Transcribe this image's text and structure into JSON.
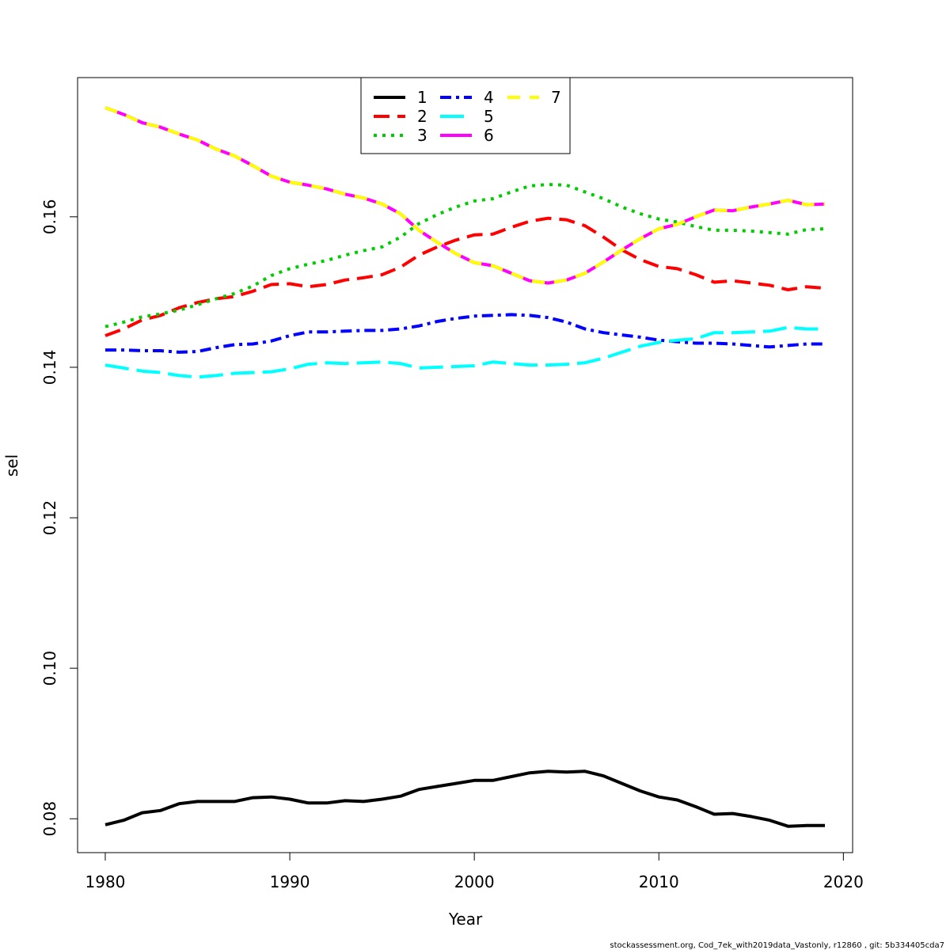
{
  "chart_data": {
    "type": "line",
    "title": "",
    "xlabel": "Year",
    "ylabel": "sel",
    "xlim": [
      1978.5,
      2020.5
    ],
    "ylim": [
      0.0755,
      0.1785
    ],
    "x_ticks": [
      1980,
      1990,
      2000,
      2010,
      2020
    ],
    "y_ticks": [
      0.08,
      0.1,
      0.12,
      0.14,
      0.16
    ],
    "x_tick_labels": [
      "1980",
      "1990",
      "2000",
      "2010",
      "2020"
    ],
    "y_tick_labels": [
      "0.08",
      "0.10",
      "0.12",
      "0.14",
      "0.16"
    ],
    "grid": false,
    "legend_position": "top-center",
    "footer": "stockassessment.org, Cod_7ek_with2019data_Vastonly, r12860 , git: 5b334405cda7",
    "x": [
      1980,
      1981,
      1982,
      1983,
      1984,
      1985,
      1986,
      1987,
      1988,
      1989,
      1990,
      1991,
      1992,
      1993,
      1994,
      1995,
      1996,
      1997,
      1998,
      1999,
      2000,
      2001,
      2002,
      2003,
      2004,
      2005,
      2006,
      2007,
      2008,
      2009,
      2010,
      2011,
      2012,
      2013,
      2014,
      2015,
      2016,
      2017,
      2018,
      2019
    ],
    "series": [
      {
        "name": "1",
        "color": "#000000",
        "dash": "",
        "values": [
          0.0792,
          0.0798,
          0.0808,
          0.0811,
          0.082,
          0.0823,
          0.0823,
          0.0823,
          0.0828,
          0.0829,
          0.0826,
          0.0821,
          0.0821,
          0.0824,
          0.0823,
          0.0826,
          0.083,
          0.0839,
          0.0843,
          0.0847,
          0.0851,
          0.0851,
          0.0856,
          0.0861,
          0.0863,
          0.0862,
          0.0863,
          0.0857,
          0.0847,
          0.0837,
          0.0829,
          0.0825,
          0.0816,
          0.0806,
          0.0807,
          0.0803,
          0.0798,
          0.079,
          0.0791,
          0.0791
        ]
      },
      {
        "name": "2",
        "color": "#ff0000",
        "dash": "20,10",
        "values": [
          0.1442,
          0.1451,
          0.1463,
          0.1469,
          0.1479,
          0.1486,
          0.1491,
          0.1494,
          0.1501,
          0.151,
          0.1511,
          0.1507,
          0.151,
          0.1516,
          0.1519,
          0.1523,
          0.1533,
          0.1549,
          0.156,
          0.1569,
          0.1576,
          0.1577,
          0.1586,
          0.1594,
          0.1598,
          0.1596,
          0.1588,
          0.1573,
          0.1556,
          0.1543,
          0.1534,
          0.1531,
          0.1523,
          0.1513,
          0.1515,
          0.1512,
          0.1509,
          0.1503,
          0.1507,
          0.1505
        ]
      },
      {
        "name": "3",
        "color": "#00cd00",
        "dash": "4,7",
        "values": [
          0.1454,
          0.146,
          0.1467,
          0.1471,
          0.1476,
          0.1483,
          0.1491,
          0.1498,
          0.1508,
          0.1522,
          0.1531,
          0.1537,
          0.1542,
          0.1549,
          0.1555,
          0.156,
          0.1573,
          0.1591,
          0.1603,
          0.1613,
          0.1621,
          0.1624,
          0.1633,
          0.1641,
          0.1643,
          0.1642,
          0.1633,
          0.1624,
          0.1613,
          0.1604,
          0.1597,
          0.1593,
          0.1587,
          0.1582,
          0.1582,
          0.1581,
          0.1579,
          0.1577,
          0.1583,
          0.1584
        ]
      },
      {
        "name": "4",
        "color": "#0000ff",
        "dash": "14,6,4,6",
        "values": [
          0.1423,
          0.1423,
          0.1422,
          0.1422,
          0.142,
          0.1421,
          0.1426,
          0.143,
          0.1431,
          0.1435,
          0.1442,
          0.1447,
          0.1447,
          0.1448,
          0.1449,
          0.1449,
          0.1451,
          0.1455,
          0.1461,
          0.1465,
          0.1468,
          0.1469,
          0.147,
          0.1469,
          0.1466,
          0.146,
          0.1451,
          0.1446,
          0.1443,
          0.144,
          0.1436,
          0.1434,
          0.1432,
          0.1432,
          0.1431,
          0.1429,
          0.1427,
          0.1429,
          0.1431,
          0.1431
        ]
      },
      {
        "name": "5",
        "color": "#00ffff",
        "dash": "30,10",
        "values": [
          0.1403,
          0.1399,
          0.1395,
          0.1393,
          0.1389,
          0.1387,
          0.1389,
          0.1392,
          0.1393,
          0.1394,
          0.1398,
          0.1404,
          0.1406,
          0.1405,
          0.1406,
          0.1407,
          0.1405,
          0.1399,
          0.14,
          0.1401,
          0.1402,
          0.1407,
          0.1405,
          0.1403,
          0.1403,
          0.1404,
          0.1406,
          0.1412,
          0.142,
          0.1428,
          0.1433,
          0.1436,
          0.1438,
          0.1446,
          0.1446,
          0.1447,
          0.1448,
          0.1453,
          0.1451,
          0.1451
        ]
      },
      {
        "name": "6",
        "color": "#ff00ff",
        "dash": "",
        "values": [
          0.1745,
          0.1736,
          0.1725,
          0.1719,
          0.171,
          0.1702,
          0.169,
          0.1681,
          0.1668,
          0.1654,
          0.1646,
          0.1642,
          0.1637,
          0.163,
          0.1625,
          0.1617,
          0.1604,
          0.1582,
          0.1566,
          0.1551,
          0.1539,
          0.1535,
          0.1525,
          0.1515,
          0.1512,
          0.1516,
          0.1525,
          0.154,
          0.1556,
          0.1571,
          0.1584,
          0.159,
          0.16,
          0.1609,
          0.1608,
          0.1613,
          0.1617,
          0.1622,
          0.1616,
          0.1617
        ]
      },
      {
        "name": "7",
        "color": "#ffff00",
        "dash": "16,12",
        "values": [
          0.1745,
          0.1736,
          0.1725,
          0.1719,
          0.171,
          0.1702,
          0.169,
          0.1681,
          0.1668,
          0.1654,
          0.1646,
          0.1642,
          0.1637,
          0.163,
          0.1625,
          0.1617,
          0.1604,
          0.1582,
          0.1566,
          0.1551,
          0.1539,
          0.1535,
          0.1525,
          0.1515,
          0.1512,
          0.1516,
          0.1525,
          0.154,
          0.1556,
          0.1571,
          0.1584,
          0.159,
          0.16,
          0.1609,
          0.1608,
          0.1613,
          0.1617,
          0.1622,
          0.1616,
          0.1617
        ]
      }
    ]
  }
}
